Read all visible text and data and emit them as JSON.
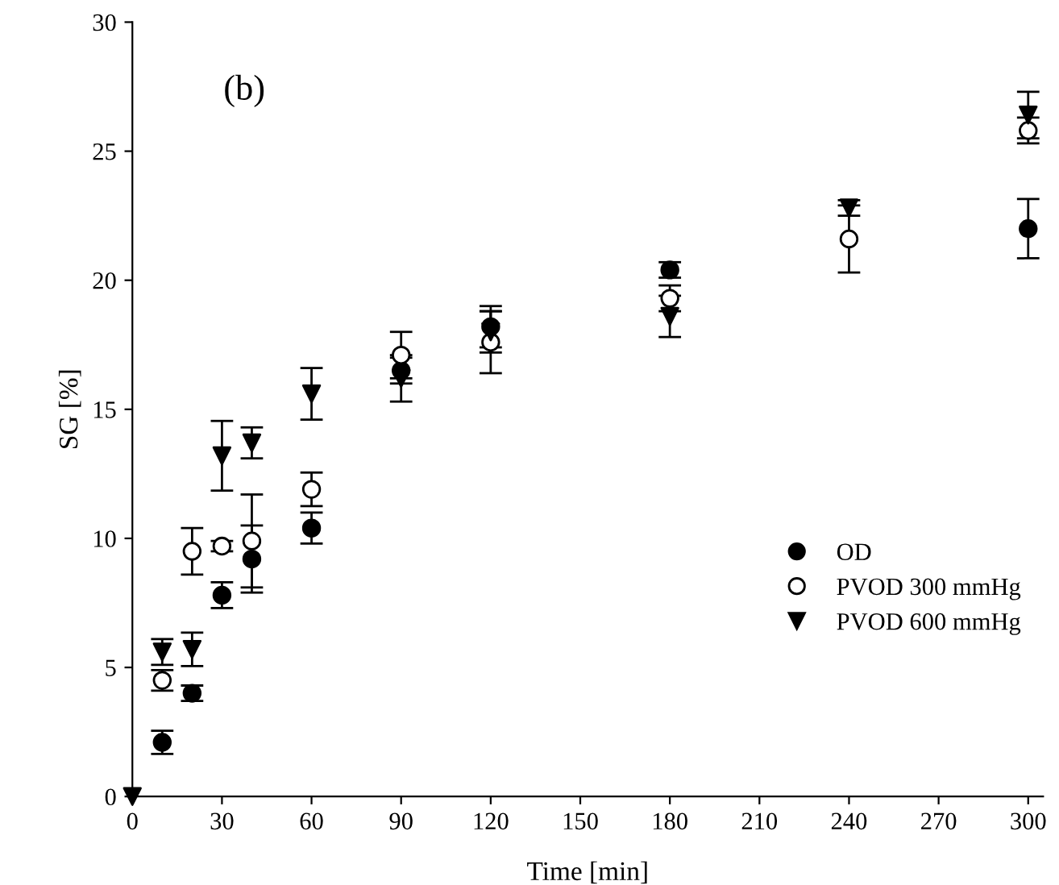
{
  "chart_data": {
    "type": "scatter",
    "xlabel": "Time [min]",
    "ylabel": "SG [%]",
    "annotations": [
      "(b)"
    ],
    "xlim": [
      0,
      305
    ],
    "xticks": [
      0,
      30,
      60,
      90,
      120,
      150,
      180,
      210,
      240,
      270,
      300
    ],
    "ylim": [
      0,
      30
    ],
    "yticks": [
      0,
      5,
      10,
      15,
      20,
      25,
      30
    ],
    "grid": false,
    "legend": "bottom right",
    "series": [
      {
        "name": "OD",
        "color": "#000000",
        "marker": "circle",
        "x": [
          10,
          20,
          30,
          40,
          60,
          90,
          120,
          180,
          240,
          300
        ],
        "values": [
          2.1,
          4.0,
          7.8,
          9.2,
          10.4,
          16.5,
          18.2,
          20.4,
          null,
          22.0
        ],
        "errors": [
          0.45,
          0.3,
          0.5,
          1.3,
          0.6,
          0.5,
          0.8,
          0.3,
          null,
          1.15
        ]
      },
      {
        "name": "PVOD 300 mmHg",
        "color": "#ffffff",
        "marker": "circle",
        "x": [
          10,
          20,
          30,
          40,
          60,
          90,
          120,
          180,
          240,
          300
        ],
        "values": [
          4.5,
          9.5,
          9.7,
          9.9,
          11.9,
          17.1,
          17.6,
          19.3,
          21.6,
          25.8
        ],
        "errors": [
          0.4,
          0.9,
          0.2,
          1.8,
          0.65,
          0.9,
          1.2,
          0.5,
          1.3,
          0.5
        ]
      },
      {
        "name": "PVOD 600 mmHg",
        "color": "#000000",
        "marker": "triangle",
        "x": [
          0,
          10,
          20,
          30,
          40,
          60,
          90,
          120,
          180,
          240,
          300
        ],
        "values": [
          0,
          5.6,
          5.7,
          13.2,
          13.7,
          15.6,
          16.2,
          18.0,
          18.6,
          22.8,
          26.4
        ],
        "errors": [
          null,
          0.5,
          0.65,
          1.35,
          0.6,
          1.0,
          0.9,
          0.8,
          0.8,
          0.3,
          0.9
        ]
      }
    ]
  }
}
